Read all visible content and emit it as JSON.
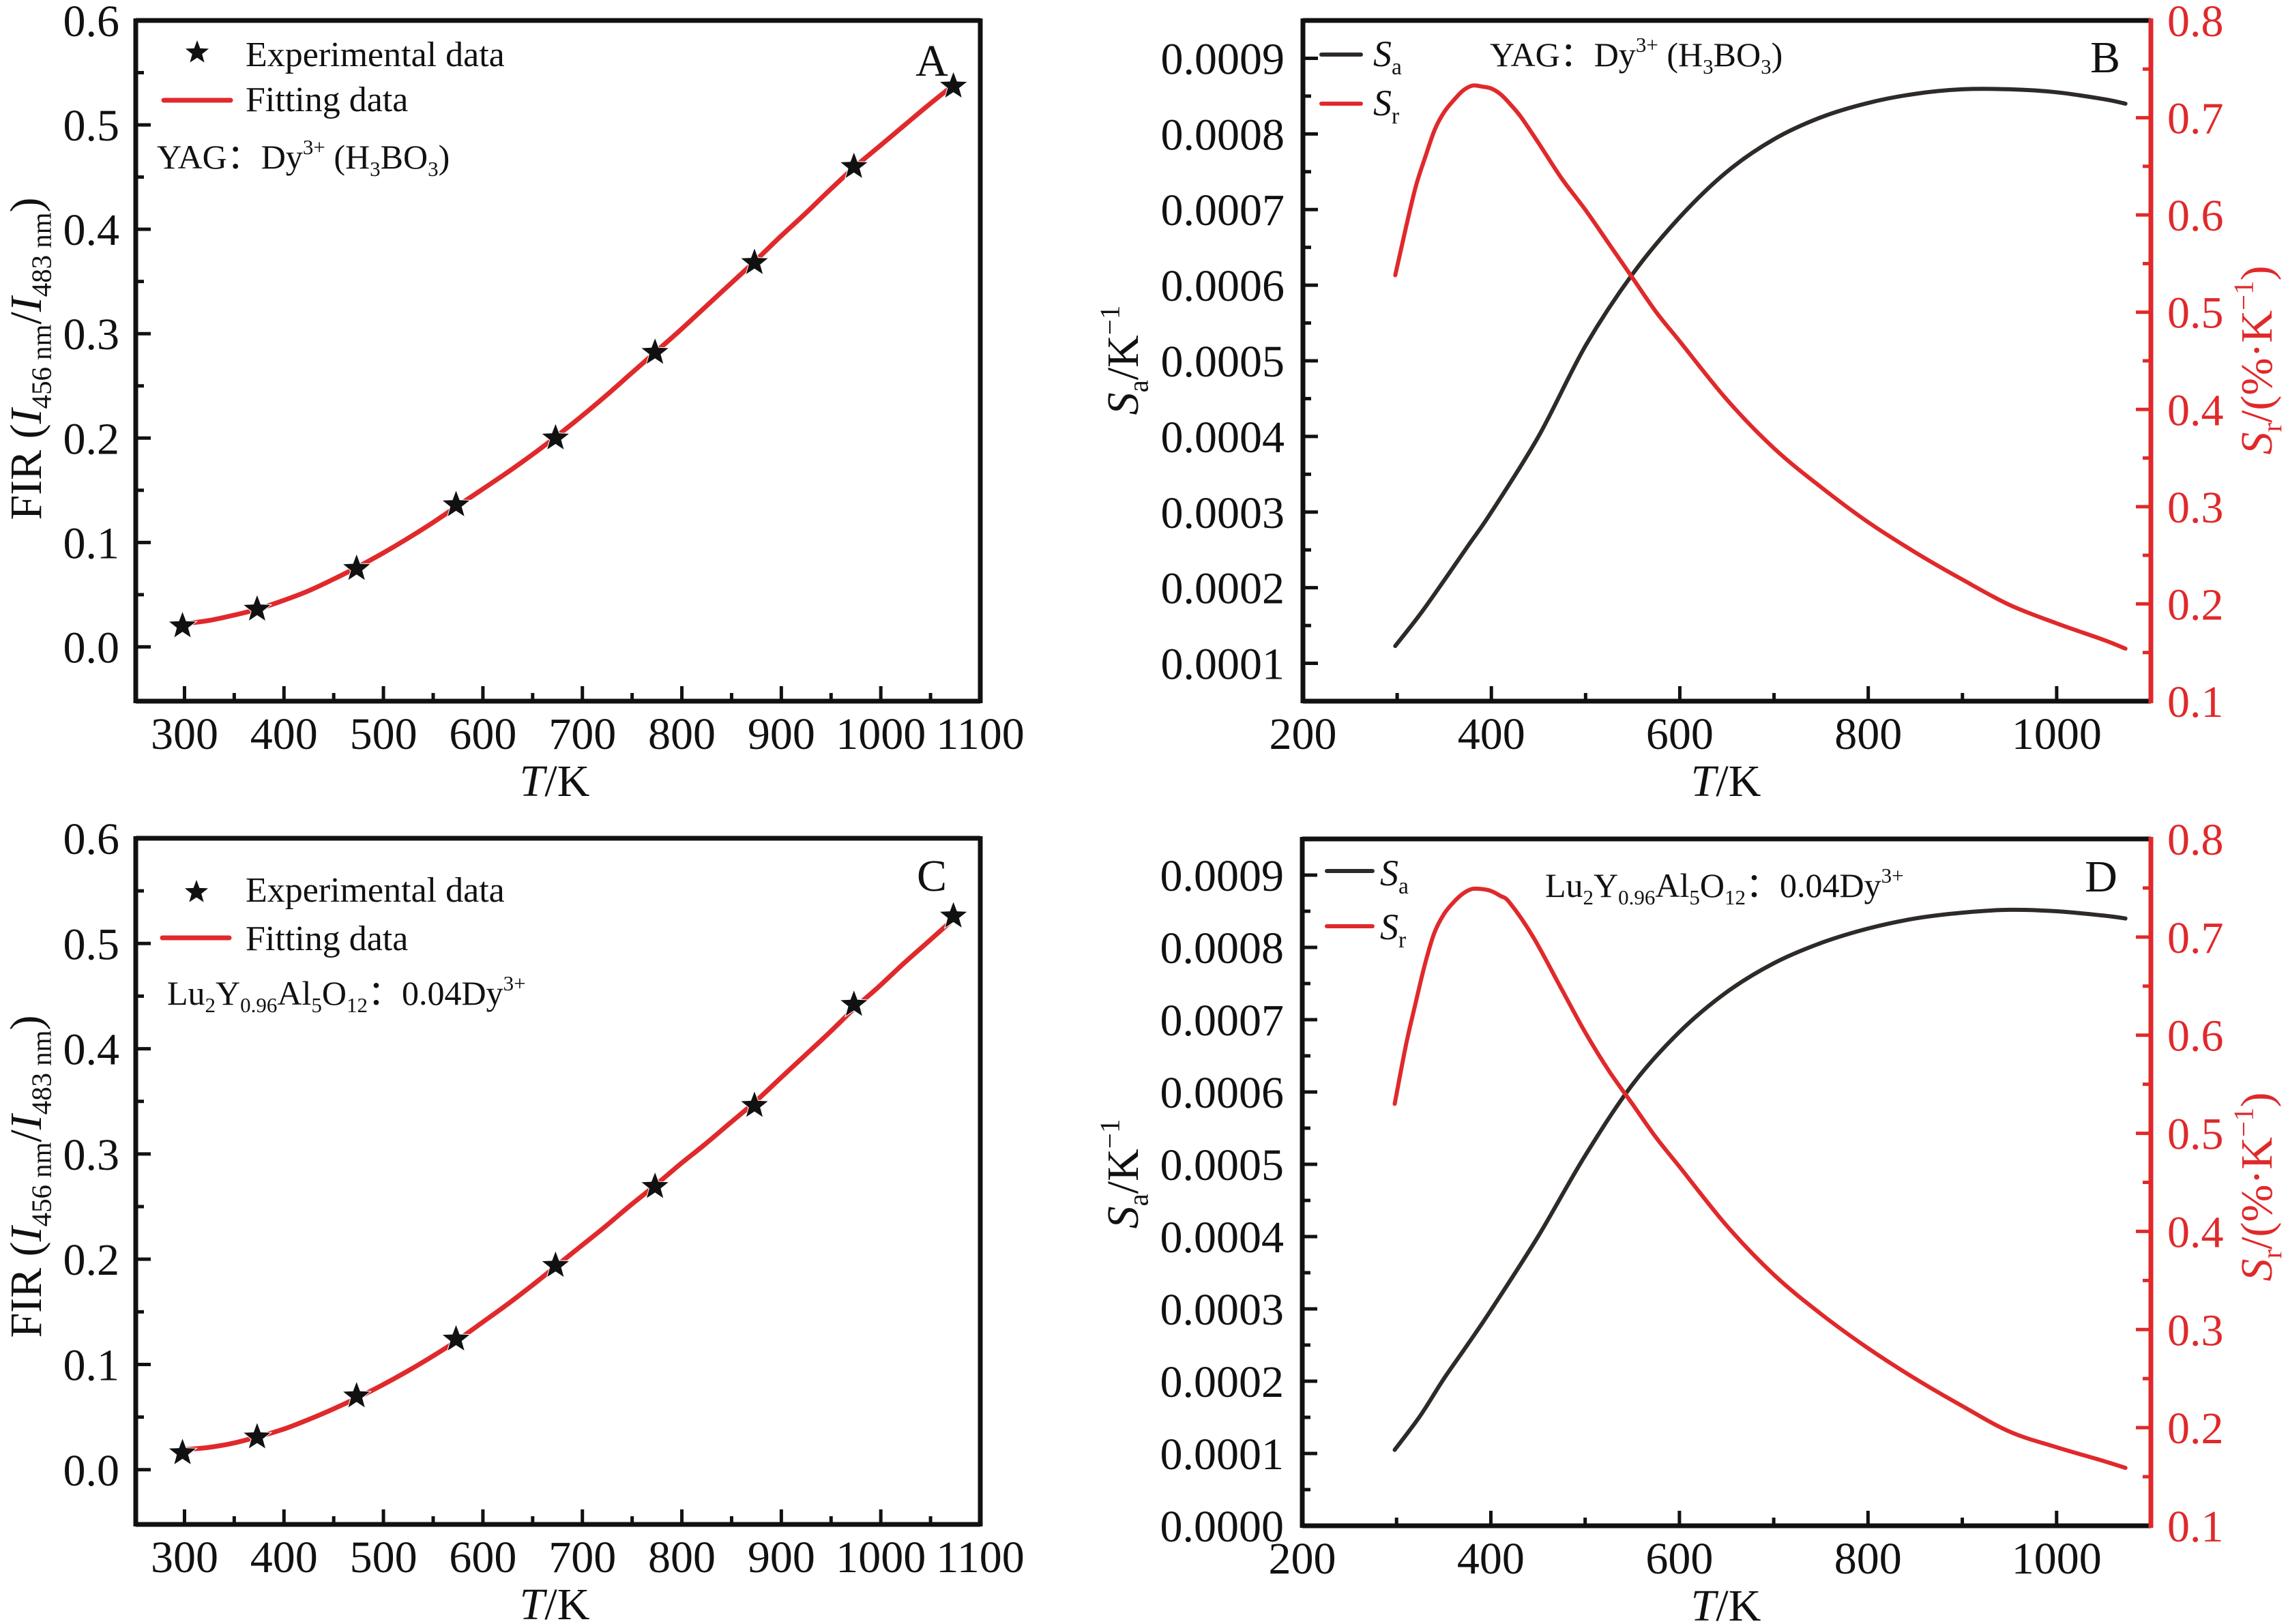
{
  "colors": {
    "red": "#e0292b",
    "black": "#111111",
    "sa_line": "#2e2a28",
    "axis": "#111111"
  },
  "chart_data": [
    {
      "panel": "A",
      "type": "scatter",
      "grid": false,
      "legend_position": "top-left",
      "xlim": [
        251,
        1100
      ],
      "ylim": [
        -0.052,
        0.6
      ],
      "x_ticks": [
        300,
        400,
        500,
        600,
        700,
        800,
        900,
        1000,
        1100
      ],
      "x_tick_labels": [
        "300",
        "400",
        "500",
        "600",
        "700",
        "800",
        "900",
        "1000",
        "1100"
      ],
      "x_minor_ticks": [
        350,
        450,
        550,
        650,
        750,
        850,
        950,
        1050
      ],
      "y_ticks": [
        0,
        0.1,
        0.2,
        0.3,
        0.4,
        0.5,
        0.6
      ],
      "y_tick_labels": [
        "0.0",
        "0.1",
        "0.2",
        "0.3",
        "0.4",
        "0.5",
        "0.6"
      ],
      "y_minor_ticks": [
        0.05,
        0.15,
        0.25,
        0.35,
        0.45,
        0.55
      ],
      "xlabel": [
        {
          "t": "T",
          "italic": true
        },
        {
          "t": "/K"
        }
      ],
      "ylabel": [
        {
          "t": "FIR ("
        },
        {
          "t": "I",
          "italic": true
        },
        {
          "t": "456 nm",
          "sub": true
        },
        {
          "t": "/"
        },
        {
          "t": "I",
          "italic": true
        },
        {
          "t": "483 nm",
          "sub": true
        },
        {
          "t": ")"
        }
      ],
      "annotation": [
        {
          "t": "YAG：Dy"
        },
        {
          "t": "3+",
          "sup": true
        },
        {
          "t": " (H"
        },
        {
          "t": "3",
          "sub": true
        },
        {
          "t": "BO"
        },
        {
          "t": "3",
          "sub": true
        },
        {
          "t": ")"
        }
      ],
      "legend": [
        {
          "label": "Experimental data",
          "marker": "star",
          "color": "#111111"
        },
        {
          "label": "Fitting data",
          "marker": "line",
          "color": "#e0292b"
        }
      ],
      "series": [
        {
          "key": "experimental",
          "marker": "star",
          "color": "#111111",
          "x": [
            298,
            373,
            473,
            573,
            673,
            773,
            873,
            973,
            1073
          ],
          "y": [
            0.02,
            0.036,
            0.075,
            0.136,
            0.2,
            0.282,
            0.368,
            0.46,
            0.537
          ]
        },
        {
          "key": "fit",
          "marker": "line",
          "color": "#e0292b",
          "x": [
            298,
            323,
            348,
            373,
            398,
            423,
            448,
            473,
            498,
            523,
            548,
            573,
            598,
            623,
            648,
            673,
            698,
            723,
            748,
            773,
            798,
            823,
            848,
            873,
            898,
            923,
            948,
            973,
            998,
            1023,
            1048,
            1073
          ],
          "y": [
            0.022,
            0.025,
            0.03,
            0.036,
            0.044,
            0.053,
            0.064,
            0.076,
            0.089,
            0.103,
            0.118,
            0.134,
            0.15,
            0.166,
            0.183,
            0.201,
            0.22,
            0.24,
            0.261,
            0.282,
            0.303,
            0.325,
            0.347,
            0.369,
            0.392,
            0.414,
            0.437,
            0.459,
            0.479,
            0.499,
            0.519,
            0.538
          ]
        }
      ]
    },
    {
      "panel": "B",
      "type": "line",
      "grid": false,
      "legend_position": "top-left",
      "xlim": [
        200,
        1100
      ],
      "ylim_left": [
        5e-05,
        0.00095
      ],
      "ylim_right": [
        0.1,
        0.8
      ],
      "x_ticks": [
        200,
        400,
        600,
        800,
        1000
      ],
      "x_tick_labels": [
        "200",
        "400",
        "600",
        "800",
        "1000"
      ],
      "x_minor_ticks": [
        300,
        500,
        700,
        900
      ],
      "y_ticks_left": [
        0.0001,
        0.0002,
        0.0003,
        0.0004,
        0.0005,
        0.0006,
        0.0007,
        0.0008,
        0.0009
      ],
      "y_tick_labels_left": [
        "0.0001",
        "0.0002",
        "0.0003",
        "0.0004",
        "0.0005",
        "0.0006",
        "0.0007",
        "0.0008",
        "0.0009"
      ],
      "y_minor_ticks_left": [
        0.00015,
        0.00025,
        0.00035,
        0.00045,
        0.00055,
        0.00065,
        0.00075,
        0.00085
      ],
      "y_ticks_right": [
        0.1,
        0.2,
        0.3,
        0.4,
        0.5,
        0.6,
        0.7,
        0.8
      ],
      "y_tick_labels_right": [
        "0.1",
        "0.2",
        "0.3",
        "0.4",
        "0.5",
        "0.6",
        "0.7",
        "0.8"
      ],
      "y_minor_ticks_right": [
        0.15,
        0.25,
        0.35,
        0.45,
        0.55,
        0.65,
        0.75
      ],
      "xlabel": [
        {
          "t": "T",
          "italic": true
        },
        {
          "t": "/K"
        }
      ],
      "ylabel_left": [
        {
          "t": "S",
          "italic": true
        },
        {
          "t": "a",
          "sub": true
        },
        {
          "t": "/K"
        },
        {
          "t": "−1",
          "sup": true
        }
      ],
      "ylabel_right": [
        {
          "t": "S",
          "italic": true
        },
        {
          "t": "r",
          "sub": true
        },
        {
          "t": "/(%·K"
        },
        {
          "t": "−1",
          "sup": true
        },
        {
          "t": ")"
        }
      ],
      "annotation": [
        {
          "t": "YAG：Dy"
        },
        {
          "t": "3+",
          "sup": true
        },
        {
          "t": " (H"
        },
        {
          "t": "3",
          "sub": true
        },
        {
          "t": "BO"
        },
        {
          "t": "3",
          "sub": true
        },
        {
          "t": ")"
        }
      ],
      "legend": [
        {
          "label": [
            {
              "t": "S",
              "italic": true
            },
            {
              "t": "a",
              "sub": true
            }
          ],
          "color": "#2e2a28"
        },
        {
          "label": [
            {
              "t": "S",
              "italic": true
            },
            {
              "t": "r",
              "sub": true
            }
          ],
          "color": "#e0292b"
        }
      ],
      "series": [
        {
          "key": "Sa",
          "axis": "left",
          "color": "#2e2a28",
          "x": [
            298,
            325,
            350,
            375,
            400,
            450,
            500,
            550,
            600,
            650,
            700,
            750,
            800,
            850,
            900,
            950,
            1000,
            1050,
            1073
          ],
          "y": [
            0.000123,
            0.000166,
            0.00021,
            0.000255,
            0.0003,
            0.0004,
            0.00052,
            0.000615,
            0.00069,
            0.00075,
            0.000793,
            0.000822,
            0.000841,
            0.000853,
            0.000859,
            0.000859,
            0.000855,
            0.000846,
            0.00084
          ]
        },
        {
          "key": "Sr",
          "axis": "right",
          "color": "#e0292b",
          "x": [
            298,
            310,
            320,
            330,
            340,
            350,
            360,
            370,
            380,
            390,
            400,
            410,
            420,
            432,
            450,
            475,
            500,
            525,
            550,
            575,
            600,
            650,
            700,
            750,
            800,
            850,
            900,
            950,
            1000,
            1050,
            1073
          ],
          "y": [
            0.538,
            0.59,
            0.63,
            0.66,
            0.688,
            0.706,
            0.718,
            0.728,
            0.733,
            0.732,
            0.73,
            0.724,
            0.714,
            0.7,
            0.674,
            0.637,
            0.605,
            0.57,
            0.535,
            0.5,
            0.47,
            0.41,
            0.36,
            0.32,
            0.284,
            0.253,
            0.225,
            0.199,
            0.18,
            0.163,
            0.154
          ]
        }
      ]
    },
    {
      "panel": "C",
      "type": "scatter",
      "grid": false,
      "legend_position": "top-left",
      "xlim": [
        251,
        1100
      ],
      "ylim": [
        -0.052,
        0.6
      ],
      "x_ticks": [
        300,
        400,
        500,
        600,
        700,
        800,
        900,
        1000,
        1100
      ],
      "x_tick_labels": [
        "300",
        "400",
        "500",
        "600",
        "700",
        "800",
        "900",
        "1000",
        "1100"
      ],
      "x_minor_ticks": [
        350,
        450,
        550,
        650,
        750,
        850,
        950,
        1050
      ],
      "y_ticks": [
        0,
        0.1,
        0.2,
        0.3,
        0.4,
        0.5,
        0.6
      ],
      "y_tick_labels": [
        "0.0",
        "0.1",
        "0.2",
        "0.3",
        "0.4",
        "0.5",
        "0.6"
      ],
      "y_minor_ticks": [
        0.05,
        0.15,
        0.25,
        0.35,
        0.45,
        0.55
      ],
      "xlabel": [
        {
          "t": "T",
          "italic": true
        },
        {
          "t": "/K"
        }
      ],
      "ylabel": [
        {
          "t": "FIR ("
        },
        {
          "t": "I",
          "italic": true
        },
        {
          "t": "456 nm",
          "sub": true
        },
        {
          "t": "/"
        },
        {
          "t": "I",
          "italic": true
        },
        {
          "t": "483 nm",
          "sub": true
        },
        {
          "t": ")"
        }
      ],
      "annotation": [
        {
          "t": "Lu"
        },
        {
          "t": "2",
          "sub": true
        },
        {
          "t": "Y"
        },
        {
          "t": "0.96",
          "sub": true
        },
        {
          "t": "Al"
        },
        {
          "t": "5",
          "sub": true
        },
        {
          "t": "O"
        },
        {
          "t": "12",
          "sub": true
        },
        {
          "t": "：0.04Dy"
        },
        {
          "t": "3+",
          "sup": true
        }
      ],
      "legend": [
        {
          "label": "Experimental data",
          "marker": "star",
          "color": "#111111"
        },
        {
          "label": "Fitting data",
          "marker": "line",
          "color": "#e0292b"
        }
      ],
      "series": [
        {
          "key": "experimental",
          "marker": "star",
          "color": "#111111",
          "x": [
            298,
            373,
            473,
            573,
            673,
            773,
            873,
            973,
            1073
          ],
          "y": [
            0.016,
            0.031,
            0.07,
            0.124,
            0.194,
            0.269,
            0.346,
            0.442,
            0.526
          ]
        },
        {
          "key": "fit",
          "marker": "line",
          "color": "#e0292b",
          "x": [
            298,
            323,
            348,
            373,
            398,
            423,
            448,
            473,
            498,
            523,
            548,
            573,
            598,
            623,
            648,
            673,
            698,
            723,
            748,
            773,
            798,
            823,
            848,
            873,
            898,
            923,
            948,
            973,
            998,
            1023,
            1048,
            1073
          ],
          "y": [
            0.019,
            0.021,
            0.025,
            0.031,
            0.038,
            0.047,
            0.057,
            0.068,
            0.08,
            0.093,
            0.107,
            0.122,
            0.139,
            0.156,
            0.174,
            0.193,
            0.212,
            0.231,
            0.251,
            0.27,
            0.29,
            0.309,
            0.329,
            0.349,
            0.371,
            0.393,
            0.415,
            0.438,
            0.459,
            0.481,
            0.502,
            0.523
          ]
        }
      ]
    },
    {
      "panel": "D",
      "type": "line",
      "grid": false,
      "legend_position": "top-left",
      "xlim": [
        200,
        1100
      ],
      "ylim_left": [
        0,
        0.00095
      ],
      "ylim_right": [
        0.1,
        0.8
      ],
      "x_ticks": [
        200,
        400,
        600,
        800,
        1000
      ],
      "x_tick_labels": [
        "200",
        "400",
        "600",
        "800",
        "1000"
      ],
      "x_minor_ticks": [
        300,
        500,
        700,
        900
      ],
      "y_ticks_left": [
        0,
        0.0001,
        0.0002,
        0.0003,
        0.0004,
        0.0005,
        0.0006,
        0.0007,
        0.0008,
        0.0009
      ],
      "y_tick_labels_left": [
        "0.0000",
        "0.0001",
        "0.0002",
        "0.0003",
        "0.0004",
        "0.0005",
        "0.0006",
        "0.0007",
        "0.0008",
        "0.0009"
      ],
      "y_minor_ticks_left": [
        5e-05,
        0.00015,
        0.00025,
        0.00035,
        0.00045,
        0.00055,
        0.00065,
        0.00075,
        0.00085
      ],
      "y_ticks_right": [
        0.1,
        0.2,
        0.3,
        0.4,
        0.5,
        0.6,
        0.7,
        0.8
      ],
      "y_tick_labels_right": [
        "0.1",
        "0.2",
        "0.3",
        "0.4",
        "0.5",
        "0.6",
        "0.7",
        "0.8"
      ],
      "y_minor_ticks_right": [
        0.15,
        0.25,
        0.35,
        0.45,
        0.55,
        0.65,
        0.75
      ],
      "xlabel": [
        {
          "t": "T",
          "italic": true
        },
        {
          "t": "/K"
        }
      ],
      "ylabel_left": [
        {
          "t": "S",
          "italic": true
        },
        {
          "t": "a",
          "sub": true
        },
        {
          "t": "/K"
        },
        {
          "t": "−1",
          "sup": true
        }
      ],
      "ylabel_right": [
        {
          "t": "S",
          "italic": true
        },
        {
          "t": "r",
          "sub": true
        },
        {
          "t": "/(%·K"
        },
        {
          "t": "−1",
          "sup": true
        },
        {
          "t": ")"
        }
      ],
      "annotation": [
        {
          "t": "Lu"
        },
        {
          "t": "2",
          "sub": true
        },
        {
          "t": "Y"
        },
        {
          "t": "0.96",
          "sub": true
        },
        {
          "t": "Al"
        },
        {
          "t": "5",
          "sub": true
        },
        {
          "t": "O"
        },
        {
          "t": "12",
          "sub": true
        },
        {
          "t": "：0.04Dy"
        },
        {
          "t": "3+",
          "sup": true
        }
      ],
      "legend": [
        {
          "label": [
            {
              "t": "S",
              "italic": true
            },
            {
              "t": "a",
              "sub": true
            }
          ],
          "color": "#2e2a28"
        },
        {
          "label": [
            {
              "t": "S",
              "italic": true
            },
            {
              "t": "r",
              "sub": true
            }
          ],
          "color": "#e0292b"
        }
      ],
      "series": [
        {
          "key": "Sa",
          "axis": "left",
          "color": "#2e2a28",
          "x": [
            298,
            325,
            350,
            375,
            400,
            450,
            500,
            550,
            600,
            650,
            700,
            750,
            800,
            850,
            900,
            950,
            1000,
            1050,
            1073
          ],
          "y": [
            0.000105,
            0.000152,
            0.000203,
            0.00025,
            0.000298,
            0.0004,
            0.000512,
            0.00061,
            0.000683,
            0.000738,
            0.000778,
            0.000806,
            0.000826,
            0.00084,
            0.000848,
            0.000852,
            0.00085,
            0.000844,
            0.00084
          ]
        },
        {
          "key": "Sr",
          "axis": "right",
          "color": "#e0292b",
          "x": [
            298,
            310,
            320,
            330,
            340,
            350,
            360,
            370,
            380,
            390,
            400,
            410,
            420,
            445,
            475,
            500,
            525,
            550,
            575,
            600,
            650,
            700,
            750,
            800,
            850,
            900,
            950,
            1000,
            1050,
            1073
          ],
          "y": [
            0.53,
            0.59,
            0.632,
            0.672,
            0.704,
            0.723,
            0.735,
            0.744,
            0.749,
            0.749,
            0.747,
            0.742,
            0.735,
            0.7,
            0.647,
            0.603,
            0.564,
            0.53,
            0.496,
            0.466,
            0.406,
            0.356,
            0.316,
            0.281,
            0.25,
            0.222,
            0.196,
            0.18,
            0.166,
            0.159
          ]
        }
      ]
    }
  ]
}
